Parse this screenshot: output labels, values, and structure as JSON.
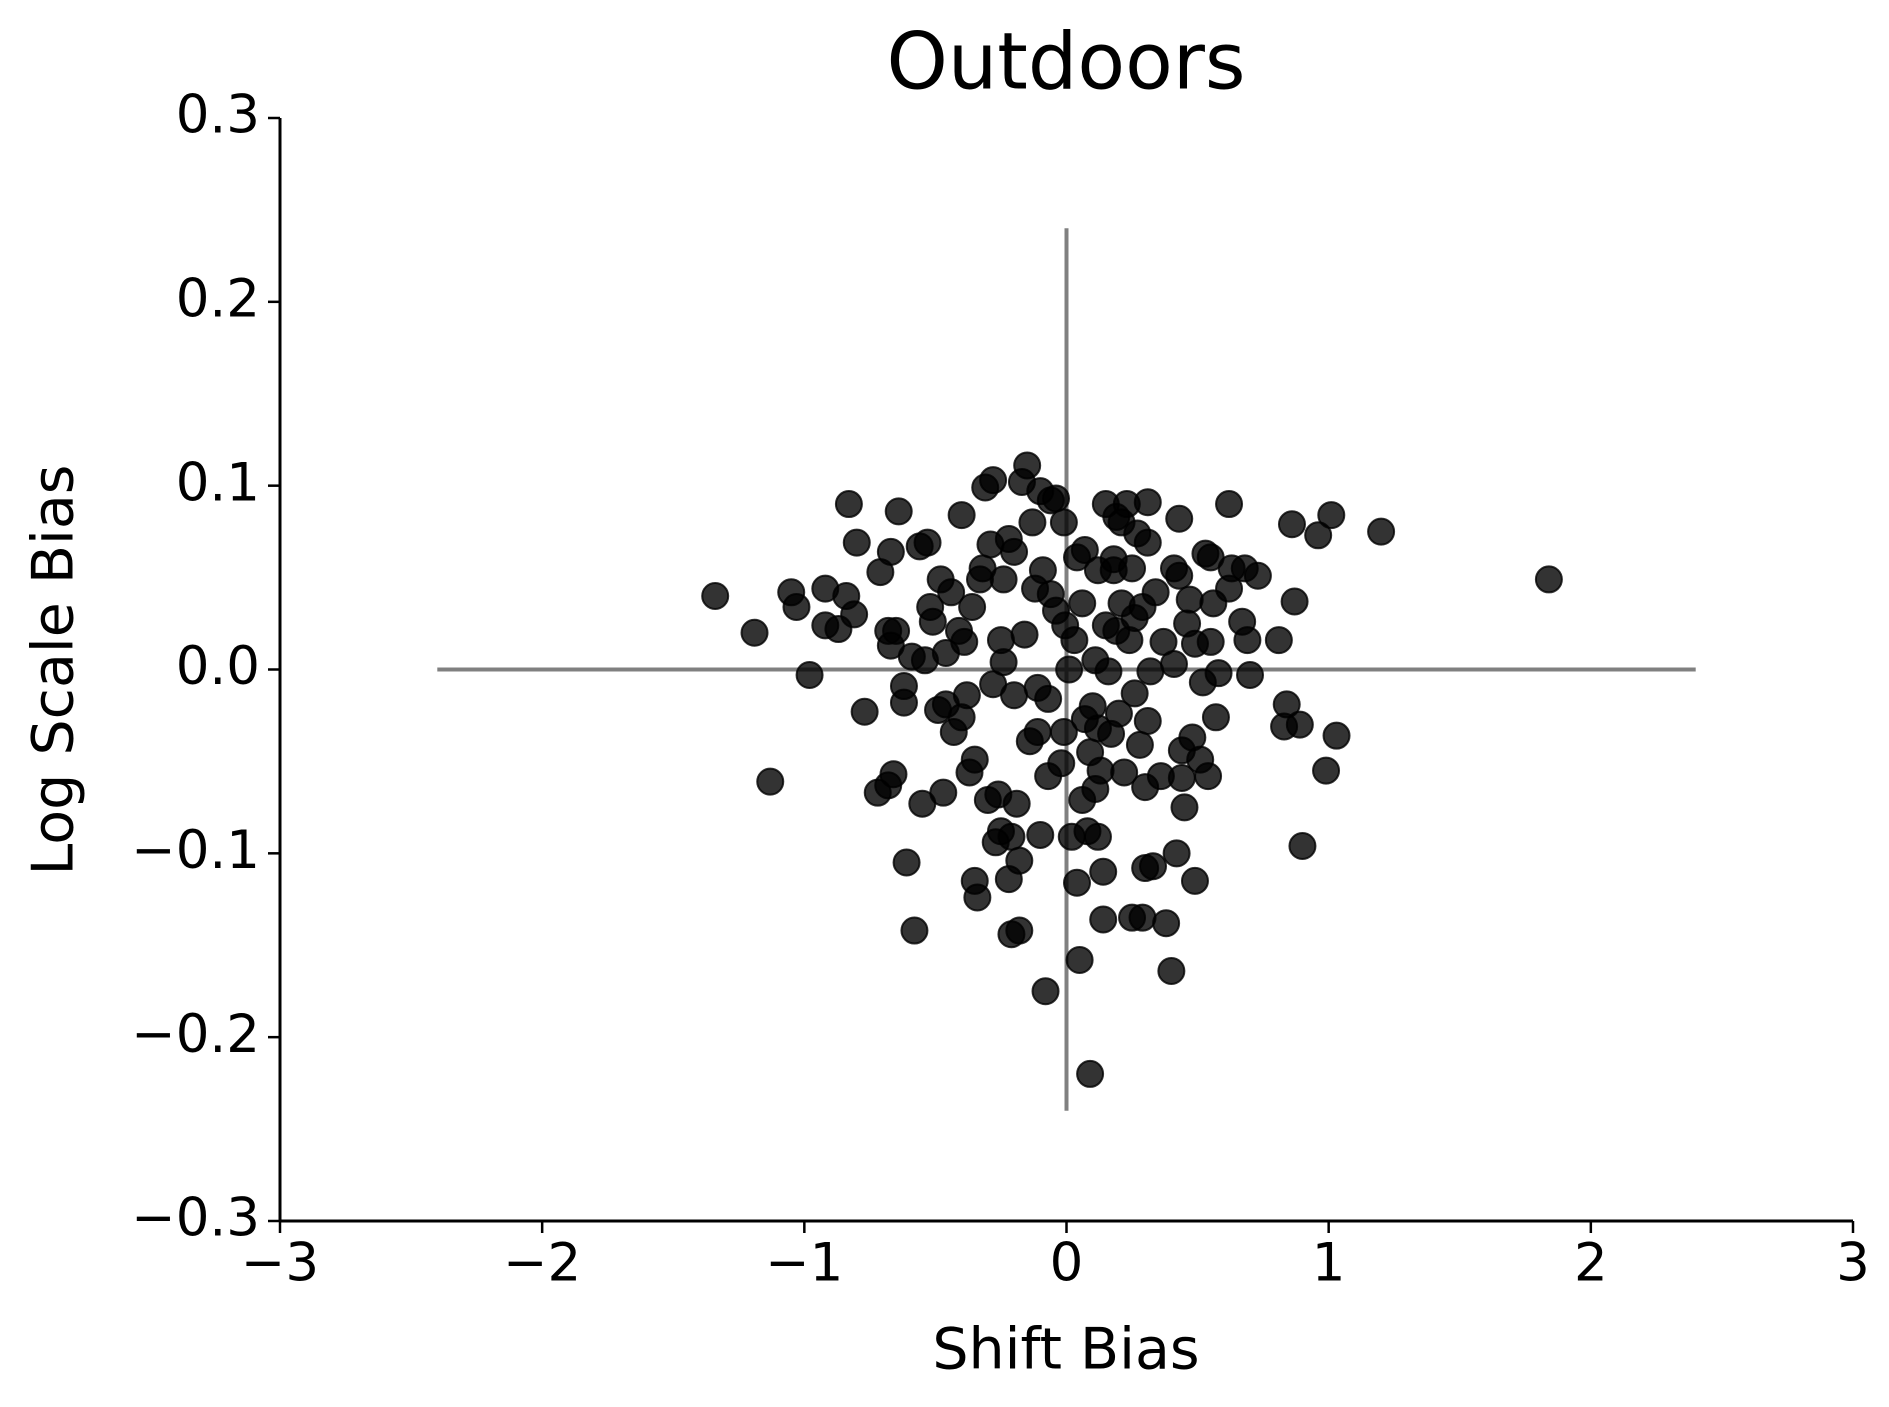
{
  "chart_data": {
    "type": "scatter",
    "title": "Outdoors",
    "x_label": "Shift Bias",
    "y_label": "Log Scale Bias",
    "color": "#000000",
    "opacity": 0.8,
    "xlim": [
      -3,
      3
    ],
    "ylim": [
      -0.3,
      0.3
    ],
    "xticks": [
      {
        "value": -3,
        "label": "−3"
      },
      {
        "value": -2,
        "label": "−2"
      },
      {
        "value": -1,
        "label": "−1"
      },
      0,
      1,
      2,
      3
    ],
    "yticks": [
      {
        "value": -0.3,
        "label": "−0.3"
      },
      {
        "value": -0.2,
        "label": "−0.2"
      },
      {
        "value": -0.1,
        "label": "−0.1"
      },
      {
        "value": 0,
        "label": "0.0"
      },
      0.1,
      0.2,
      0.3
    ],
    "hline": {
      "y": 0,
      "x": [
        -2.4,
        2.4
      ],
      "color": "#808080"
    },
    "vline": {
      "x": 0,
      "y": [
        -0.24,
        0.24
      ],
      "color": "#808080"
    },
    "x": [
      -1.34,
      -1.19,
      -1.13,
      -1.05,
      -1.03,
      -0.98,
      -0.92,
      -0.92,
      -0.87,
      -0.84,
      -0.83,
      -0.81,
      -0.8,
      -0.77,
      -0.72,
      -0.71,
      -0.68,
      -0.68,
      -0.67,
      -0.67,
      -0.66,
      -0.65,
      -0.64,
      -0.62,
      -0.62,
      -0.61,
      -0.59,
      -0.58,
      -0.56,
      -0.55,
      -0.54,
      -0.53,
      -0.52,
      -0.51,
      -0.49,
      -0.48,
      -0.47,
      -0.46,
      -0.46,
      -0.44,
      -0.43,
      -0.41,
      -0.4,
      -0.4,
      -0.39,
      -0.38,
      -0.37,
      -0.36,
      -0.35,
      -0.35,
      -0.34,
      -0.33,
      -0.32,
      -0.31,
      -0.3,
      -0.29,
      -0.28,
      -0.28,
      -0.27,
      -0.26,
      -0.25,
      -0.25,
      -0.24,
      -0.24,
      -0.22,
      -0.22,
      -0.21,
      -0.21,
      -0.2,
      -0.2,
      -0.19,
      -0.18,
      -0.18,
      -0.17,
      -0.16,
      -0.15,
      -0.14,
      -0.13,
      -0.12,
      -0.11,
      -0.11,
      -0.1,
      -0.1,
      -0.09,
      -0.08,
      -0.07,
      -0.07,
      -0.06,
      -0.06,
      -0.04,
      -0.04,
      -0.02,
      -0.01,
      -0.01,
      -0.005,
      0.01,
      0.02,
      0.03,
      0.04,
      0.04,
      0.05,
      0.06,
      0.06,
      0.07,
      0.07,
      0.08,
      0.09,
      0.09,
      0.1,
      0.11,
      0.11,
      0.12,
      0.12,
      0.12,
      0.13,
      0.14,
      0.14,
      0.15,
      0.15,
      0.16,
      0.17,
      0.18,
      0.18,
      0.19,
      0.19,
      0.2,
      0.21,
      0.21,
      0.22,
      0.23,
      0.24,
      0.25,
      0.25,
      0.26,
      0.26,
      0.27,
      0.28,
      0.29,
      0.29,
      0.3,
      0.3,
      0.31,
      0.31,
      0.31,
      0.32,
      0.33,
      0.34,
      0.36,
      0.37,
      0.38,
      0.4,
      0.41,
      0.41,
      0.42,
      0.43,
      0.43,
      0.44,
      0.44,
      0.45,
      0.46,
      0.47,
      0.48,
      0.49,
      0.49,
      0.51,
      0.52,
      0.53,
      0.54,
      0.55,
      0.55,
      0.56,
      0.57,
      0.58,
      0.62,
      0.62,
      0.63,
      0.67,
      0.68,
      0.69,
      0.7,
      0.73,
      0.81,
      0.83,
      0.84,
      0.86,
      0.87,
      0.89,
      0.9,
      0.96,
      0.99,
      1.01,
      1.03,
      1.2,
      1.84
    ],
    "values": [
      0.04,
      0.02,
      -0.061,
      0.042,
      0.034,
      -0.003,
      0.044,
      0.024,
      0.022,
      0.04,
      0.09,
      0.03,
      0.069,
      -0.023,
      -0.067,
      0.053,
      -0.063,
      0.021,
      0.013,
      0.064,
      -0.057,
      0.021,
      0.086,
      -0.009,
      -0.018,
      -0.105,
      0.007,
      -0.142,
      0.067,
      -0.073,
      0.005,
      0.069,
      0.034,
      0.026,
      -0.022,
      0.049,
      -0.067,
      0.009,
      -0.019,
      0.042,
      -0.034,
      0.021,
      0.084,
      -0.026,
      0.015,
      -0.014,
      -0.056,
      0.034,
      -0.115,
      -0.049,
      -0.124,
      0.049,
      0.055,
      0.099,
      -0.071,
      0.068,
      0.103,
      -0.008,
      -0.094,
      -0.068,
      0.016,
      -0.088,
      0.004,
      0.049,
      -0.114,
      0.071,
      -0.091,
      -0.144,
      -0.014,
      0.064,
      -0.073,
      -0.142,
      -0.104,
      0.102,
      0.019,
      0.111,
      -0.039,
      0.08,
      0.044,
      -0.01,
      -0.034,
      0.097,
      -0.09,
      0.054,
      -0.175,
      -0.058,
      -0.016,
      0.092,
      0.041,
      0.093,
      0.032,
      -0.051,
      -0.034,
      0.08,
      0.024,
      0.0,
      -0.091,
      0.016,
      0.061,
      -0.116,
      -0.158,
      0.036,
      -0.071,
      -0.027,
      0.065,
      -0.088,
      -0.045,
      -0.22,
      -0.02,
      0.005,
      -0.065,
      -0.091,
      0.054,
      -0.032,
      -0.055,
      -0.11,
      -0.136,
      0.09,
      0.024,
      -0.001,
      -0.035,
      0.054,
      0.06,
      0.083,
      0.021,
      -0.024,
      0.08,
      0.036,
      -0.056,
      0.09,
      0.016,
      0.055,
      -0.135,
      0.028,
      -0.013,
      0.074,
      -0.041,
      0.034,
      -0.135,
      -0.064,
      -0.108,
      -0.028,
      0.069,
      0.091,
      -0.001,
      -0.107,
      0.042,
      -0.058,
      0.015,
      -0.138,
      -0.164,
      0.055,
      0.003,
      -0.1,
      0.082,
      0.051,
      -0.044,
      -0.059,
      -0.075,
      0.025,
      0.038,
      -0.037,
      -0.115,
      0.014,
      -0.049,
      -0.007,
      0.063,
      -0.058,
      0.061,
      0.015,
      0.036,
      -0.026,
      -0.002,
      0.044,
      0.09,
      0.055,
      0.026,
      0.055,
      0.016,
      -0.003,
      0.051,
      0.016,
      -0.031,
      -0.019,
      0.079,
      0.037,
      -0.03,
      -0.096,
      0.073,
      -0.055,
      0.084,
      -0.036,
      0.075,
      0.049
    ]
  }
}
